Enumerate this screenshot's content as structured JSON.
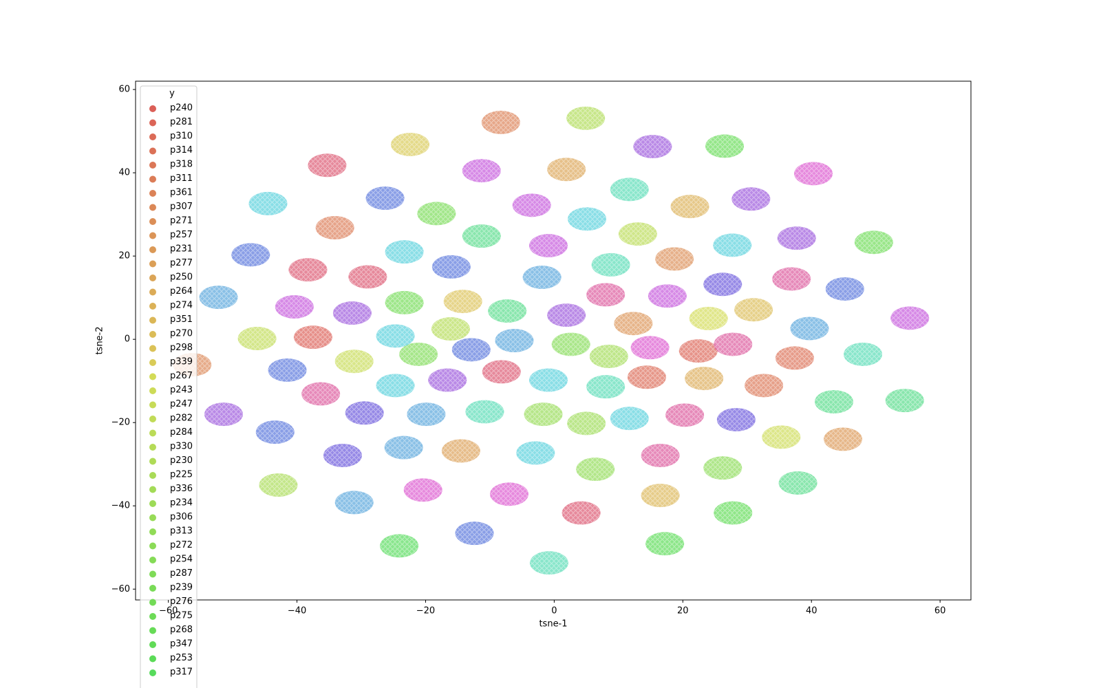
{
  "chart_data": {
    "type": "scatter",
    "x_label": "tsne-1",
    "y_label": "tsne-2",
    "legend_title": "y",
    "legend_position": "upper left",
    "point_opacity": 0.7,
    "xlim": [
      -65.1,
      64.8
    ],
    "ylim": [
      -62.6,
      62
    ],
    "xticks": [
      {
        "value": -60,
        "label": "−60"
      },
      {
        "value": -40,
        "label": "−40"
      },
      {
        "value": -20,
        "label": "−20"
      },
      0,
      20,
      40,
      60
    ],
    "yticks": [
      {
        "value": -60,
        "label": "−60"
      },
      {
        "value": -40,
        "label": "−40"
      },
      {
        "value": -20,
        "label": "−20"
      },
      0,
      20,
      40,
      60
    ],
    "series": [
      {
        "name": "p240",
        "color": "#db5f57",
        "x": [
          -37.5
        ],
        "y": [
          0.5
        ]
      },
      {
        "name": "p281",
        "color": "#db6557",
        "x": [
          22.4
        ],
        "y": [
          -2.8
        ]
      },
      {
        "name": "p310",
        "color": "#db6b57",
        "x": [
          14.4
        ],
        "y": [
          -9.1
        ]
      },
      {
        "name": "p314",
        "color": "#db7157",
        "x": [
          37.4
        ],
        "y": [
          -4.5
        ]
      },
      {
        "name": "p318",
        "color": "#db7757",
        "x": [
          32.6
        ],
        "y": [
          -11.1
        ]
      },
      {
        "name": "p311",
        "color": "#db7c57",
        "x": [
          -34.1
        ],
        "y": [
          26.8
        ]
      },
      {
        "name": "p361",
        "color": "#db8257",
        "x": [
          -8.3
        ],
        "y": [
          52.1
        ]
      },
      {
        "name": "p307",
        "color": "#db8857",
        "x": [
          -56.3
        ],
        "y": [
          -6.1
        ]
      },
      {
        "name": "p271",
        "color": "#db8e57",
        "x": [
          18.7
        ],
        "y": [
          19.3
        ]
      },
      {
        "name": "p257",
        "color": "#db9457",
        "x": [
          12.3
        ],
        "y": [
          3.8
        ]
      },
      {
        "name": "p231",
        "color": "#db9957",
        "x": [
          44.9
        ],
        "y": [
          -24.0
        ]
      },
      {
        "name": "p277",
        "color": "#db9f57",
        "x": [
          -14.5
        ],
        "y": [
          -26.8
        ]
      },
      {
        "name": "p250",
        "color": "#dba557",
        "x": [
          1.9
        ],
        "y": [
          40.8
        ]
      },
      {
        "name": "p264",
        "color": "#dbab57",
        "x": [
          23.3
        ],
        "y": [
          -9.4
        ]
      },
      {
        "name": "p274",
        "color": "#dbb157",
        "x": [
          21.1
        ],
        "y": [
          31.9
        ]
      },
      {
        "name": "p351",
        "color": "#dbb757",
        "x": [
          16.5
        ],
        "y": [
          -37.5
        ]
      },
      {
        "name": "p270",
        "color": "#dbbc57",
        "x": [
          31.0
        ],
        "y": [
          7.1
        ]
      },
      {
        "name": "p298",
        "color": "#dbc257",
        "x": [
          -14.2
        ],
        "y": [
          9.1
        ]
      },
      {
        "name": "p339",
        "color": "#d9cb57",
        "x": [
          -22.4
        ],
        "y": [
          46.8
        ]
      },
      {
        "name": "p267",
        "color": "#d3db57",
        "x": [
          24.0
        ],
        "y": [
          5.0
        ]
      },
      {
        "name": "p243",
        "color": "#cddb57",
        "x": [
          35.3
        ],
        "y": [
          -23.5
        ]
      },
      {
        "name": "p247",
        "color": "#c7db57",
        "x": [
          -31.1
        ],
        "y": [
          -5.3
        ]
      },
      {
        "name": "p282",
        "color": "#c1db57",
        "x": [
          -46.2
        ],
        "y": [
          0.2
        ]
      },
      {
        "name": "p284",
        "color": "#bbdb57",
        "x": [
          13.0
        ],
        "y": [
          25.3
        ]
      },
      {
        "name": "p330",
        "color": "#b5db57",
        "x": [
          -16.1
        ],
        "y": [
          2.5
        ]
      },
      {
        "name": "p230",
        "color": "#afdb57",
        "x": [
          4.9
        ],
        "y": [
          53.1
        ]
      },
      {
        "name": "p225",
        "color": "#a9db57",
        "x": [
          -42.9
        ],
        "y": [
          -35.0
        ]
      },
      {
        "name": "p336",
        "color": "#a3db57",
        "x": [
          8.5
        ],
        "y": [
          -4.1
        ]
      },
      {
        "name": "p234",
        "color": "#9ddb57",
        "x": [
          5.0
        ],
        "y": [
          -20.2
        ]
      },
      {
        "name": "p306",
        "color": "#97db57",
        "x": [
          -1.7
        ],
        "y": [
          -18.0
        ]
      },
      {
        "name": "p313",
        "color": "#91db57",
        "x": [
          6.4
        ],
        "y": [
          -31.2
        ]
      },
      {
        "name": "p272",
        "color": "#8bdb57",
        "x": [
          26.2
        ],
        "y": [
          -30.9
        ]
      },
      {
        "name": "p254",
        "color": "#85db57",
        "x": [
          2.6
        ],
        "y": [
          -1.2
        ]
      },
      {
        "name": "p287",
        "color": "#7fdb57",
        "x": [
          -21.1
        ],
        "y": [
          -3.6
        ]
      },
      {
        "name": "p239",
        "color": "#79db57",
        "x": [
          -18.3
        ],
        "y": [
          30.2
        ]
      },
      {
        "name": "p276",
        "color": "#73db57",
        "x": [
          -23.3
        ],
        "y": [
          8.8
        ]
      },
      {
        "name": "p275",
        "color": "#6ddb57",
        "x": [
          49.7
        ],
        "y": [
          23.3
        ]
      },
      {
        "name": "p268",
        "color": "#67db57",
        "x": [
          26.5
        ],
        "y": [
          46.4
        ]
      },
      {
        "name": "p347",
        "color": "#61db57",
        "x": [
          27.8
        ],
        "y": [
          -41.7
        ]
      },
      {
        "name": "p253",
        "color": "#5bdb57",
        "x": [
          17.2
        ],
        "y": [
          -49.1
        ]
      },
      {
        "name": "p317",
        "color": "#57db5c",
        "x": [
          -24.1
        ],
        "y": [
          -49.6
        ]
      },
      {
        "color": "#57db8a",
        "x": [
          43.5,
          -7.3,
          -11.3,
          54.5,
          37.9
        ],
        "y": [
          -15.0,
          6.8,
          24.8,
          -14.7,
          -34.5
        ]
      },
      {
        "color": "#57dbb5",
        "x": [
          -10.8,
          -0.8,
          48.0,
          8.8,
          8.0,
          11.7
        ],
        "y": [
          -17.4,
          -53.7,
          -3.6,
          17.9,
          -11.4,
          36.0
        ]
      },
      {
        "color": "#57d0db",
        "x": [
          -44.5,
          -23.3,
          5.1,
          27.7,
          -24.7,
          -0.9,
          -24.7,
          11.7,
          -2.9
        ],
        "y": [
          32.6,
          21.0,
          28.9,
          22.6,
          0.8,
          -9.8,
          -11.1,
          -19.0,
          -27.3
        ]
      },
      {
        "color": "#57a5db",
        "x": [
          -52.2,
          -1.9,
          39.7,
          -6.2,
          -19.9,
          -23.4,
          -31.1
        ],
        "y": [
          10.1,
          14.9,
          2.6,
          -0.3,
          -18.0,
          -26.0,
          -39.2
        ]
      },
      {
        "color": "#5775db",
        "x": [
          -26.3,
          -47.2,
          -16.0,
          45.2,
          -12.9,
          -41.5,
          -43.4,
          -12.4
        ],
        "y": [
          33.9,
          20.3,
          17.4,
          12.1,
          -2.5,
          -7.4,
          -22.3,
          -46.6
        ]
      },
      {
        "color": "#6a57db",
        "x": [
          26.2,
          -29.5,
          28.3,
          -32.9
        ],
        "y": [
          13.2,
          -17.7,
          -19.3,
          -27.9
        ]
      },
      {
        "color": "#9b57db",
        "x": [
          15.3,
          30.6,
          -31.4,
          1.9,
          37.7,
          -51.4,
          -16.6
        ],
        "y": [
          46.3,
          33.7,
          6.3,
          5.8,
          24.3,
          -18.0,
          -9.8
        ]
      },
      {
        "color": "#c557db",
        "x": [
          -11.3,
          -3.5,
          -0.9,
          -40.4,
          17.6,
          55.3
        ],
        "y": [
          40.5,
          32.2,
          22.5,
          7.8,
          10.4,
          5.1
        ]
      },
      {
        "color": "#db57cf",
        "x": [
          40.3,
          14.9,
          -20.4,
          -7.0
        ],
        "y": [
          39.8,
          -2.0,
          -36.2,
          -37.2
        ]
      },
      {
        "color": "#db579b",
        "x": [
          8.0,
          36.9,
          27.8,
          -36.3,
          20.3,
          16.5
        ],
        "y": [
          10.7,
          14.5,
          -1.2,
          -13.1,
          -18.2,
          -27.9
        ]
      },
      {
        "color": "#db5770",
        "x": [
          -35.3,
          -38.3,
          -29.0,
          4.2,
          -8.2
        ],
        "y": [
          41.8,
          16.7,
          15.0,
          -41.7,
          -7.8
        ]
      }
    ]
  }
}
